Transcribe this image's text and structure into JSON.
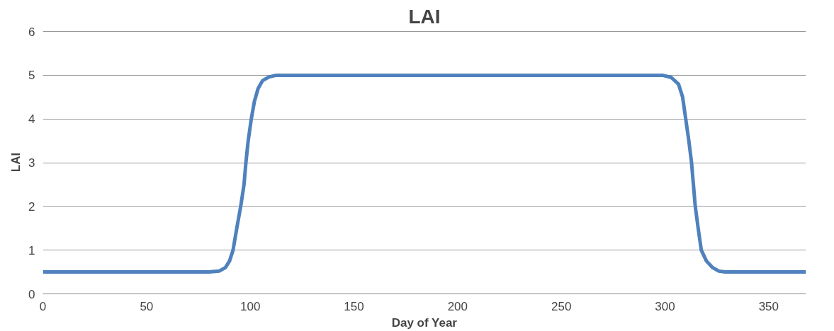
{
  "chart_data": {
    "type": "line",
    "title": "LAI",
    "xlabel": "Day of Year",
    "ylabel": "LAI",
    "x": [
      0,
      40,
      80,
      85,
      88,
      90,
      91.7,
      93.5,
      95.4,
      97,
      97.9,
      99,
      100.5,
      102,
      103.8,
      106,
      109,
      112.5,
      150,
      200,
      250,
      298.8,
      303,
      306.5,
      308.5,
      310,
      311.5,
      312.8,
      314.6,
      316,
      317.5,
      320,
      323,
      326,
      329,
      368
    ],
    "series": [
      {
        "color": "#4f81bd",
        "values": [
          0.5,
          0.5,
          0.5,
          0.52,
          0.6,
          0.75,
          1,
          1.5,
          2,
          2.5,
          3,
          3.5,
          4,
          4.4,
          4.7,
          4.88,
          4.96,
          5,
          5,
          5,
          5,
          5,
          4.95,
          4.8,
          4.5,
          4,
          3.5,
          3,
          2,
          1.5,
          1,
          0.75,
          0.6,
          0.52,
          0.5,
          0.5
        ]
      }
    ],
    "xlim": [
      0,
      368
    ],
    "ylim": [
      0,
      6
    ],
    "xticks": [
      0,
      50,
      100,
      150,
      200,
      250,
      300,
      350
    ],
    "yticks": [
      0,
      1,
      2,
      3,
      4,
      5,
      6
    ],
    "grid": "y",
    "marker": "none",
    "line_style": "solid"
  }
}
